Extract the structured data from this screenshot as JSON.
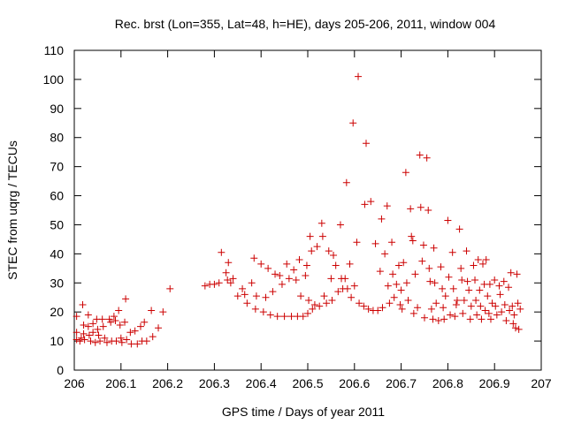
{
  "chart_data": {
    "type": "scatter",
    "title": "Rec. brst (Lon=355, Lat=48, h=HE), days 205-206, 2011, window 004",
    "xlabel": "GPS time / Days of year 2011",
    "ylabel": "STEC from uqrg / TECUs",
    "xlim": [
      206,
      207
    ],
    "ylim": [
      0,
      110
    ],
    "xticks": [
      206,
      206.1,
      206.2,
      206.3,
      206.4,
      206.5,
      206.6,
      206.7,
      206.8,
      206.9,
      207
    ],
    "xtick_labels": [
      "206",
      "206.1",
      "206.2",
      "206.3",
      "206.4",
      "206.5",
      "206.6",
      "206.7",
      "206.8",
      "206.9",
      "207"
    ],
    "yticks": [
      0,
      10,
      20,
      30,
      40,
      50,
      60,
      70,
      80,
      90,
      100,
      110
    ],
    "ytick_labels": [
      "0",
      "10",
      "20",
      "30",
      "40",
      "50",
      "60",
      "70",
      "80",
      "90",
      "100",
      "110"
    ],
    "grid": false,
    "marker": "+",
    "color": "#cc0000",
    "series": [
      {
        "name": "STEC",
        "points": [
          [
            206.005,
            18.5
          ],
          [
            206.005,
            13
          ],
          [
            206.005,
            10.5
          ],
          [
            206.012,
            10
          ],
          [
            206.015,
            11
          ],
          [
            206.018,
            22.5
          ],
          [
            206.02,
            15.5
          ],
          [
            206.02,
            12.5
          ],
          [
            206.022,
            10.5
          ],
          [
            206.03,
            19
          ],
          [
            206.03,
            15
          ],
          [
            206.032,
            12
          ],
          [
            206.035,
            10
          ],
          [
            206.04,
            16
          ],
          [
            206.04,
            13
          ],
          [
            206.045,
            9.5
          ],
          [
            206.048,
            17.5
          ],
          [
            206.05,
            14
          ],
          [
            206.052,
            12
          ],
          [
            206.055,
            10
          ],
          [
            206.06,
            17.5
          ],
          [
            206.062,
            15
          ],
          [
            206.065,
            11
          ],
          [
            206.07,
            9.5
          ],
          [
            206.075,
            17.5
          ],
          [
            206.078,
            16.5
          ],
          [
            206.08,
            10
          ],
          [
            206.085,
            18.5
          ],
          [
            206.088,
            17
          ],
          [
            206.09,
            10
          ],
          [
            206.095,
            20.5
          ],
          [
            206.098,
            15.5
          ],
          [
            206.1,
            11
          ],
          [
            206.102,
            9.5
          ],
          [
            206.108,
            16.5
          ],
          [
            206.11,
            24.5
          ],
          [
            206.112,
            10.5
          ],
          [
            206.12,
            13
          ],
          [
            206.122,
            9
          ],
          [
            206.13,
            13.5
          ],
          [
            206.135,
            9
          ],
          [
            206.142,
            15
          ],
          [
            206.145,
            10
          ],
          [
            206.15,
            16.5
          ],
          [
            206.155,
            10
          ],
          [
            206.165,
            20.5
          ],
          [
            206.168,
            11.5
          ],
          [
            206.18,
            14.5
          ],
          [
            206.19,
            20
          ],
          [
            206.205,
            28
          ],
          [
            206.28,
            29
          ],
          [
            206.29,
            29.5
          ],
          [
            206.3,
            29.5
          ],
          [
            206.31,
            30
          ],
          [
            206.315,
            40.5
          ],
          [
            206.325,
            33.5
          ],
          [
            206.328,
            31
          ],
          [
            206.33,
            37
          ],
          [
            206.335,
            30
          ],
          [
            206.34,
            31.5
          ],
          [
            206.35,
            25.5
          ],
          [
            206.36,
            28
          ],
          [
            206.365,
            26
          ],
          [
            206.37,
            23
          ],
          [
            206.38,
            30
          ],
          [
            206.385,
            38.5
          ],
          [
            206.388,
            21
          ],
          [
            206.39,
            25.5
          ],
          [
            206.4,
            36.5
          ],
          [
            206.405,
            20
          ],
          [
            206.41,
            25
          ],
          [
            206.415,
            35
          ],
          [
            206.42,
            19
          ],
          [
            206.425,
            27
          ],
          [
            206.43,
            33
          ],
          [
            206.435,
            18.5
          ],
          [
            206.44,
            32.5
          ],
          [
            206.445,
            29.5
          ],
          [
            206.45,
            18.5
          ],
          [
            206.455,
            36.5
          ],
          [
            206.46,
            31.5
          ],
          [
            206.465,
            18.5
          ],
          [
            206.47,
            34.5
          ],
          [
            206.475,
            31
          ],
          [
            206.478,
            18.5
          ],
          [
            206.482,
            38
          ],
          [
            206.485,
            25.5
          ],
          [
            206.49,
            18.5
          ],
          [
            206.495,
            32.5
          ],
          [
            206.498,
            36
          ],
          [
            206.5,
            19.5
          ],
          [
            206.502,
            24
          ],
          [
            206.505,
            46
          ],
          [
            206.508,
            41
          ],
          [
            206.51,
            21
          ],
          [
            206.515,
            22.5
          ],
          [
            206.52,
            42.5
          ],
          [
            206.525,
            22
          ],
          [
            206.53,
            50.5
          ],
          [
            206.532,
            46
          ],
          [
            206.535,
            25.5
          ],
          [
            206.54,
            23
          ],
          [
            206.545,
            41
          ],
          [
            206.55,
            31.5
          ],
          [
            206.552,
            24
          ],
          [
            206.555,
            39.5
          ],
          [
            206.56,
            36
          ],
          [
            206.565,
            27
          ],
          [
            206.57,
            50
          ],
          [
            206.572,
            31.5
          ],
          [
            206.575,
            28
          ],
          [
            206.58,
            31.5
          ],
          [
            206.583,
            64.5
          ],
          [
            206.585,
            28
          ],
          [
            206.59,
            36.5
          ],
          [
            206.593,
            25
          ],
          [
            206.597,
            85
          ],
          [
            206.6,
            29
          ],
          [
            206.605,
            44
          ],
          [
            206.608,
            101
          ],
          [
            206.61,
            23
          ],
          [
            206.62,
            22
          ],
          [
            206.622,
            57
          ],
          [
            206.625,
            78
          ],
          [
            206.63,
            21
          ],
          [
            206.635,
            58
          ],
          [
            206.64,
            20.5
          ],
          [
            206.645,
            43.5
          ],
          [
            206.65,
            20.5
          ],
          [
            206.655,
            34
          ],
          [
            206.658,
            52
          ],
          [
            206.66,
            21.5
          ],
          [
            206.665,
            40
          ],
          [
            206.67,
            56.5
          ],
          [
            206.672,
            29
          ],
          [
            206.675,
            23
          ],
          [
            206.68,
            44
          ],
          [
            206.682,
            33
          ],
          [
            206.685,
            25
          ],
          [
            206.69,
            29.5
          ],
          [
            206.695,
            36
          ],
          [
            206.698,
            22.5
          ],
          [
            206.7,
            27.5
          ],
          [
            206.702,
            21
          ],
          [
            206.705,
            37
          ],
          [
            206.71,
            68
          ],
          [
            206.712,
            30
          ],
          [
            206.715,
            24
          ],
          [
            206.72,
            55.5
          ],
          [
            206.722,
            46
          ],
          [
            206.725,
            44.5
          ],
          [
            206.727,
            19.5
          ],
          [
            206.73,
            33
          ],
          [
            206.735,
            21.5
          ],
          [
            206.74,
            74
          ],
          [
            206.742,
            56
          ],
          [
            206.745,
            37.5
          ],
          [
            206.748,
            43
          ],
          [
            206.75,
            18
          ],
          [
            206.755,
            73
          ],
          [
            206.758,
            55
          ],
          [
            206.76,
            35
          ],
          [
            206.762,
            30.5
          ],
          [
            206.765,
            21
          ],
          [
            206.768,
            17.5
          ],
          [
            206.77,
            42
          ],
          [
            206.772,
            30
          ],
          [
            206.775,
            23
          ],
          [
            206.78,
            17
          ],
          [
            206.785,
            35.5
          ],
          [
            206.788,
            28
          ],
          [
            206.79,
            21.5
          ],
          [
            206.792,
            17.5
          ],
          [
            206.795,
            25.5
          ],
          [
            206.8,
            51.5
          ],
          [
            206.802,
            32
          ],
          [
            206.805,
            19
          ],
          [
            206.81,
            40.5
          ],
          [
            206.812,
            28
          ],
          [
            206.815,
            18.5
          ],
          [
            206.818,
            22.5
          ],
          [
            206.82,
            24
          ],
          [
            206.825,
            48.5
          ],
          [
            206.828,
            35
          ],
          [
            206.83,
            31
          ],
          [
            206.832,
            19.5
          ],
          [
            206.835,
            24
          ],
          [
            206.84,
            41
          ],
          [
            206.842,
            30.5
          ],
          [
            206.845,
            27.5
          ],
          [
            206.848,
            17.5
          ],
          [
            206.85,
            22
          ],
          [
            206.855,
            36
          ],
          [
            206.858,
            31
          ],
          [
            206.86,
            24
          ],
          [
            206.862,
            19
          ],
          [
            206.865,
            38
          ],
          [
            206.868,
            27.5
          ],
          [
            206.87,
            22
          ],
          [
            206.872,
            17.5
          ],
          [
            206.875,
            36.5
          ],
          [
            206.878,
            29.5
          ],
          [
            206.88,
            20.5
          ],
          [
            206.882,
            38
          ],
          [
            206.885,
            25.5
          ],
          [
            206.888,
            19.5
          ],
          [
            206.89,
            29.5
          ],
          [
            206.892,
            17.5
          ],
          [
            206.895,
            23
          ],
          [
            206.9,
            31
          ],
          [
            206.902,
            22
          ],
          [
            206.905,
            19
          ],
          [
            206.91,
            29
          ],
          [
            206.912,
            26
          ],
          [
            206.915,
            20
          ],
          [
            206.92,
            30.5
          ],
          [
            206.922,
            22.5
          ],
          [
            206.925,
            17
          ],
          [
            206.93,
            28.5
          ],
          [
            206.932,
            20.5
          ],
          [
            206.935,
            33.5
          ],
          [
            206.938,
            22
          ],
          [
            206.94,
            16
          ],
          [
            206.942,
            19
          ],
          [
            206.945,
            14.5
          ],
          [
            206.948,
            33
          ],
          [
            206.95,
            23
          ],
          [
            206.952,
            14
          ],
          [
            206.955,
            21
          ]
        ]
      }
    ]
  }
}
